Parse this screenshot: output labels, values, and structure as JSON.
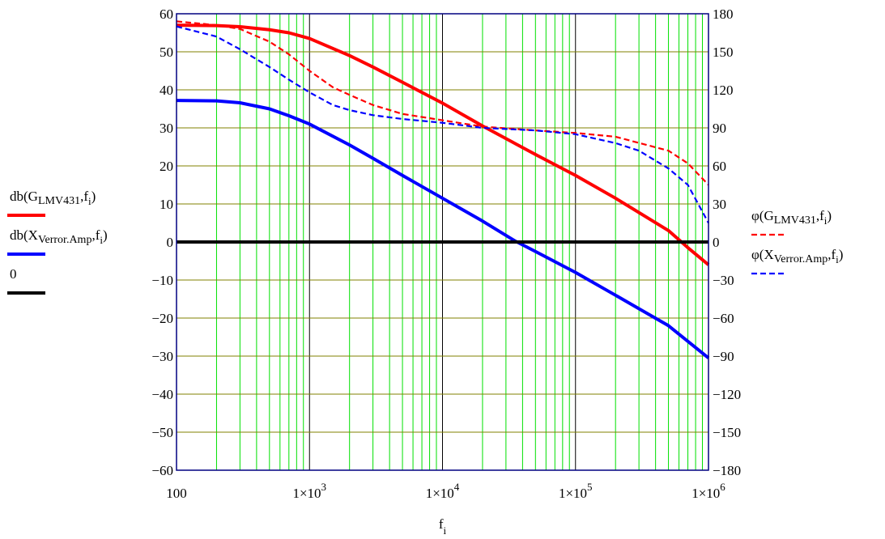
{
  "chart_data": {
    "type": "line",
    "x_scale": "log",
    "xlim": [
      100,
      1000000
    ],
    "ylim_left": [
      -60,
      60
    ],
    "ylim_right": [
      -180,
      180
    ],
    "grid": true,
    "x_ticks": [
      {
        "value": 100,
        "mantissa": "100",
        "exp": ""
      },
      {
        "value": 1000,
        "mantissa": "1×10",
        "exp": "3"
      },
      {
        "value": 10000,
        "mantissa": "1×10",
        "exp": "4"
      },
      {
        "value": 100000,
        "mantissa": "1×10",
        "exp": "5"
      },
      {
        "value": 1000000,
        "mantissa": "1×10",
        "exp": "6"
      }
    ],
    "y_left_ticks": [
      "60",
      "50",
      "40",
      "30",
      "20",
      "10",
      "0",
      "−10",
      "−20",
      "−30",
      "−40",
      "−50",
      "−60"
    ],
    "y_right_ticks": [
      "180",
      "150",
      "120",
      "90",
      "60",
      "30",
      "0",
      "−30",
      "−60",
      "−90",
      "−120",
      "−150",
      "−180"
    ],
    "xlabel": {
      "main": "f",
      "sub": "i"
    },
    "legend_left": [
      {
        "pre": "db(G",
        "sub": "LMV431",
        "post": ",f",
        "sub2": "i",
        "end": ")",
        "color": "#ff0000",
        "dash": false
      },
      {
        "pre": "db(X",
        "sub": "Verror.Amp",
        "post": ",f",
        "sub2": "i",
        "end": ")",
        "color": "#0000ff",
        "dash": false
      },
      {
        "pre": "0",
        "sub": "",
        "post": "",
        "sub2": "",
        "end": "",
        "color": "#000000",
        "dash": false
      }
    ],
    "legend_right": [
      {
        "pre": "φ(G",
        "sub": "LMV431",
        "post": ",f",
        "sub2": "i",
        "end": ")",
        "color": "#ff0000",
        "dash": true
      },
      {
        "pre": "φ(X",
        "sub": "Verror.Amp",
        "post": ",f",
        "sub2": "i",
        "end": ")",
        "color": "#0000ff",
        "dash": true
      }
    ],
    "series": [
      {
        "axis": "left",
        "color": "#ff0000",
        "dash": false,
        "x": [
          100,
          200,
          300,
          500,
          700,
          1000,
          2000,
          3000,
          5000,
          10000,
          20000,
          50000,
          100000,
          200000,
          500000,
          700000,
          1000000
        ],
        "y": [
          57,
          56.9,
          56.6,
          55.8,
          55,
          53.5,
          49,
          46,
          42,
          36.5,
          30.5,
          23,
          17.5,
          11.5,
          3,
          -1.5,
          -6
        ]
      },
      {
        "axis": "left",
        "color": "#0000ff",
        "dash": false,
        "x": [
          100,
          200,
          300,
          500,
          700,
          1000,
          2000,
          3000,
          5000,
          10000,
          20000,
          35000,
          50000,
          100000,
          200000,
          500000,
          1000000
        ],
        "y": [
          37.2,
          37.1,
          36.6,
          35,
          33.2,
          31,
          25.5,
          22,
          17.5,
          11.5,
          5.5,
          0.3,
          -2.5,
          -8,
          -14,
          -22,
          -30.5
        ]
      },
      {
        "axis": "left",
        "color": "#000000",
        "dash": false,
        "x": [
          100,
          1000000
        ],
        "y": [
          0,
          0
        ]
      },
      {
        "axis": "right",
        "color": "#ff0000",
        "dash": true,
        "x": [
          100,
          200,
          300,
          500,
          700,
          1000,
          1500,
          2000,
          3000,
          5000,
          10000,
          20000,
          50000,
          100000,
          200000,
          500000,
          700000,
          1000000
        ],
        "y": [
          174,
          171,
          168,
          158,
          148,
          135,
          122,
          116,
          108,
          101,
          96,
          91,
          88,
          86,
          83,
          72,
          62,
          45
        ]
      },
      {
        "axis": "right",
        "color": "#0000ff",
        "dash": true,
        "x": [
          100,
          200,
          300,
          500,
          700,
          1000,
          1500,
          2000,
          3000,
          5000,
          10000,
          20000,
          50000,
          100000,
          200000,
          300000,
          500000,
          700000,
          1000000
        ],
        "y": [
          170,
          162,
          152,
          138,
          128,
          118,
          108,
          104,
          100,
          97,
          94,
          90,
          88,
          85,
          78,
          72,
          58,
          45,
          15
        ]
      }
    ]
  }
}
